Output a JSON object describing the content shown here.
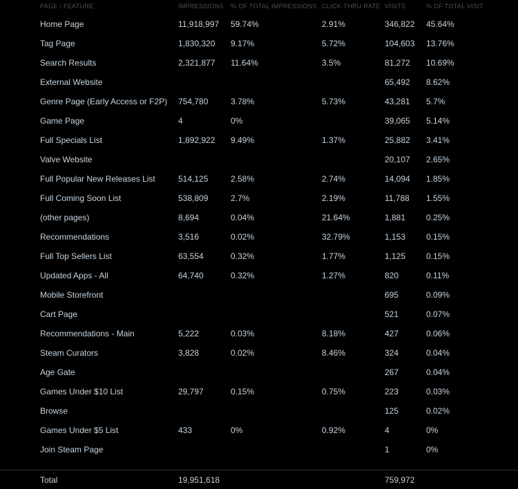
{
  "columns": [
    "PAGE / FEATURE",
    "IMPRESSIONS",
    "% OF TOTAL IMPRESSIONS",
    "CLICK-THRU RATE",
    "VISITS",
    "% OF TOTAL VISITS"
  ],
  "rows": [
    [
      "Home Page",
      "11,918,997",
      "59.74%",
      "2.91%",
      "346,822",
      "45.64%"
    ],
    [
      "Tag Page",
      "1,830,320",
      "9.17%",
      "5.72%",
      "104,603",
      "13.76%"
    ],
    [
      "Search Results",
      "2,321,877",
      "11.64%",
      "3.5%",
      "81,272",
      "10.69%"
    ],
    [
      "External Website",
      "",
      "",
      "",
      "65,492",
      "8.62%"
    ],
    [
      "Genre Page (Early Access or F2P)",
      "754,780",
      "3.78%",
      "5.73%",
      "43,281",
      "5.7%"
    ],
    [
      "Game Page",
      "4",
      "0%",
      "",
      "39,065",
      "5.14%"
    ],
    [
      "Full Specials List",
      "1,892,922",
      "9.49%",
      "1.37%",
      "25,882",
      "3.41%"
    ],
    [
      "Valve Website",
      "",
      "",
      "",
      "20,107",
      "2.65%"
    ],
    [
      "Full Popular New Releases List",
      "514,125",
      "2.58%",
      "2.74%",
      "14,094",
      "1.85%"
    ],
    [
      "Full Coming Soon List",
      "538,809",
      "2.7%",
      "2.19%",
      "11,788",
      "1.55%"
    ],
    [
      "(other pages)",
      "8,694",
      "0.04%",
      "21.64%",
      "1,881",
      "0.25%"
    ],
    [
      "Recommendations",
      "3,516",
      "0.02%",
      "32.79%",
      "1,153",
      "0.15%"
    ],
    [
      "Full Top Sellers List",
      "63,554",
      "0.32%",
      "1.77%",
      "1,125",
      "0.15%"
    ],
    [
      "Updated Apps - All",
      "64,740",
      "0.32%",
      "1.27%",
      "820",
      "0.11%"
    ],
    [
      "Mobile Storefront",
      "",
      "",
      "",
      "695",
      "0.09%"
    ],
    [
      "Cart Page",
      "",
      "",
      "",
      "521",
      "0.07%"
    ],
    [
      "Recommendations - Main",
      "5,222",
      "0.03%",
      "8.18%",
      "427",
      "0.06%"
    ],
    [
      "Steam Curators",
      "3,828",
      "0.02%",
      "8.46%",
      "324",
      "0.04%"
    ],
    [
      "Age Gate",
      "",
      "",
      "",
      "267",
      "0.04%"
    ],
    [
      "Games Under $10 List",
      "29,797",
      "0.15%",
      "0.75%",
      "223",
      "0.03%"
    ],
    [
      "Browse",
      "",
      "",
      "",
      "125",
      "0.02%"
    ],
    [
      "Games Under $5 List",
      "433",
      "0%",
      "0.92%",
      "4",
      "0%"
    ],
    [
      "Join Steam Page",
      "",
      "",
      "",
      "1",
      "0%"
    ]
  ],
  "total": {
    "label": "Total",
    "impressions": "19,951,618",
    "visits": "759,972"
  }
}
